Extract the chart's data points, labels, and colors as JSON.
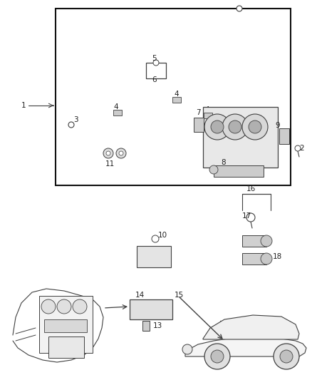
{
  "bg_color": "#ffffff",
  "line_color": "#404040",
  "fig_width": 4.38,
  "fig_height": 5.33,
  "dpi": 100,
  "label_fontsize": 7.5
}
